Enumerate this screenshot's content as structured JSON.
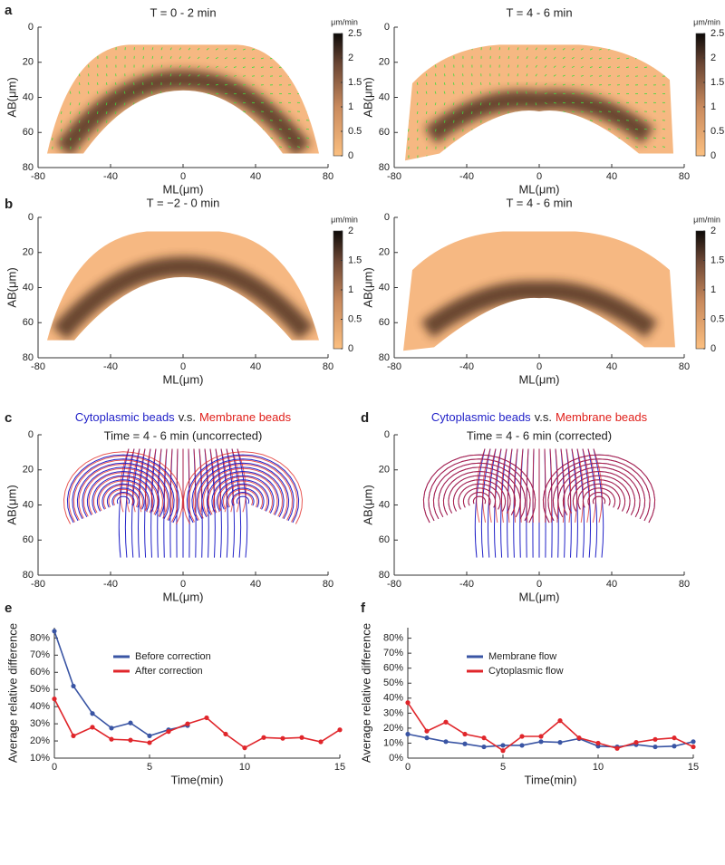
{
  "chart_data": [
    {
      "type": "heatmap",
      "panel": "a",
      "title": "T = 0 - 2 min",
      "xlabel": "ML(μm)",
      "ylabel": "AB(μm)",
      "xlim": [
        -80,
        80
      ],
      "xticks": [
        -80,
        -40,
        0,
        40,
        80
      ],
      "ylim": [
        0,
        80
      ],
      "yticks": [
        0,
        20,
        40,
        60,
        80
      ],
      "y_inverted": true,
      "colorbar_label": "μm/min",
      "clim": [
        0,
        2.5
      ],
      "cticks": [
        0,
        0.5,
        1,
        1.5,
        2,
        2.5
      ],
      "arrows": true
    },
    {
      "type": "heatmap",
      "title": "T = 4 - 6 min",
      "xlabel": "ML(μm)",
      "ylabel": "AB(μm)",
      "xlim": [
        -80,
        80
      ],
      "xticks": [
        -80,
        -40,
        0,
        40,
        80
      ],
      "ylim": [
        0,
        80
      ],
      "yticks": [
        0,
        20,
        40,
        60,
        80
      ],
      "y_inverted": true,
      "colorbar_label": "μm/min",
      "clim": [
        0,
        2.5
      ],
      "cticks": [
        0,
        0.5,
        1,
        1.5,
        2,
        2.5
      ],
      "arrows": true
    },
    {
      "type": "heatmap",
      "panel": "b",
      "title": "T = −2 - 0 min",
      "xlabel": "ML(μm)",
      "ylabel": "AB(μm)",
      "xlim": [
        -80,
        80
      ],
      "xticks": [
        -80,
        -40,
        0,
        40,
        80
      ],
      "ylim": [
        0,
        80
      ],
      "yticks": [
        0,
        20,
        40,
        60,
        80
      ],
      "y_inverted": true,
      "colorbar_label": "μm/min",
      "clim": [
        0,
        2
      ],
      "cticks": [
        0,
        0.5,
        1,
        1.5,
        2
      ],
      "arrows": false
    },
    {
      "type": "heatmap",
      "title": "T = 4 - 6 min",
      "xlabel": "ML(μm)",
      "ylabel": "AB(μm)",
      "xlim": [
        -80,
        80
      ],
      "xticks": [
        -80,
        -40,
        0,
        40,
        80
      ],
      "ylim": [
        0,
        80
      ],
      "yticks": [
        0,
        20,
        40,
        60,
        80
      ],
      "y_inverted": true,
      "colorbar_label": "μm/min",
      "clim": [
        0,
        2
      ],
      "cticks": [
        0,
        0.5,
        1,
        1.5,
        2
      ],
      "arrows": false
    },
    {
      "type": "streamline",
      "panel": "c",
      "connector": "v.s.",
      "subtitle": "Time = 4 - 6 min (uncorrected)",
      "xlabel": "ML(μm)",
      "ylabel": "AB(μm)",
      "xlim": [
        -80,
        80
      ],
      "xticks": [
        -80,
        -40,
        0,
        40,
        80
      ],
      "ylim": [
        0,
        80
      ],
      "yticks": [
        0,
        20,
        40,
        60,
        80
      ],
      "y_inverted": true,
      "series": [
        {
          "name": "Cytoplasmic beads",
          "color": "#2222c8"
        },
        {
          "name": "Membrane beads",
          "color": "#e0201b"
        }
      ]
    },
    {
      "type": "streamline",
      "panel": "d",
      "connector": "v.s.",
      "subtitle": "Time = 4 - 6 min (corrected)",
      "xlabel": "ML(μm)",
      "ylabel": "AB(μm)",
      "xlim": [
        -80,
        80
      ],
      "xticks": [
        -80,
        -40,
        0,
        40,
        80
      ],
      "ylim": [
        0,
        80
      ],
      "yticks": [
        0,
        20,
        40,
        60,
        80
      ],
      "y_inverted": true,
      "series": [
        {
          "name": "Cytoplasmic beads",
          "color": "#2222c8"
        },
        {
          "name": "Membrane beads",
          "color": "#e0201b"
        }
      ]
    },
    {
      "type": "line",
      "panel": "e",
      "xlabel": "Time(min)",
      "ylabel": "Average relative difference",
      "x": [
        0,
        1,
        2,
        3,
        4,
        5,
        6,
        7,
        8,
        9,
        10,
        11,
        12,
        13,
        14,
        15
      ],
      "xlim": [
        0,
        15
      ],
      "xticks": [
        0,
        5,
        10,
        15
      ],
      "ylim": [
        10,
        86
      ],
      "yticks": [
        {
          "value": 10,
          "label": "10%"
        },
        {
          "value": 20,
          "label": "20%"
        },
        {
          "value": 30,
          "label": "30%"
        },
        {
          "value": 40,
          "label": "40%"
        },
        {
          "value": 50,
          "label": "50%"
        },
        {
          "value": 60,
          "label": "60%"
        },
        {
          "value": 70,
          "label": "70%"
        },
        {
          "value": 80,
          "label": "80%"
        }
      ],
      "series": [
        {
          "name": "Before correction",
          "color": "#3a55a4",
          "values": [
            84,
            52,
            36,
            27.5,
            30.5,
            23,
            26.5,
            29,
            null,
            null,
            null,
            null,
            null,
            null,
            null,
            null
          ]
        },
        {
          "name": "After correction",
          "color": "#e0262b",
          "values": [
            44.5,
            23,
            28,
            21,
            20.5,
            19,
            25.5,
            30,
            33.5,
            24,
            16,
            22,
            21.5,
            22,
            19.5,
            26.5
          ]
        }
      ]
    },
    {
      "type": "line",
      "panel": "f",
      "xlabel": "Time(min)",
      "ylabel": "Average relative difference",
      "x": [
        0,
        1,
        2,
        3,
        4,
        5,
        6,
        7,
        8,
        9,
        10,
        11,
        12,
        13,
        14,
        15
      ],
      "xlim": [
        0,
        15
      ],
      "xticks": [
        0,
        5,
        10,
        15
      ],
      "ylim": [
        0,
        87
      ],
      "yticks": [
        {
          "value": 0,
          "label": "0%"
        },
        {
          "value": 10,
          "label": "10%"
        },
        {
          "value": 20,
          "label": "20%"
        },
        {
          "value": 30,
          "label": "30%"
        },
        {
          "value": 40,
          "label": "40%"
        },
        {
          "value": 50,
          "label": "50%"
        },
        {
          "value": 60,
          "label": "60%"
        },
        {
          "value": 70,
          "label": "70%"
        },
        {
          "value": 80,
          "label": "80%"
        }
      ],
      "series": [
        {
          "name": "Membrane flow",
          "color": "#3a55a4",
          "values": [
            16,
            13.5,
            11,
            9.5,
            7.5,
            8.5,
            8.5,
            11,
            10.5,
            13,
            8,
            7.5,
            9,
            7.5,
            8,
            11
          ]
        },
        {
          "name": "Cytoplasmic flow",
          "color": "#e0262b",
          "values": [
            37,
            18,
            24,
            16,
            13.5,
            5,
            14.5,
            14.5,
            25,
            13.5,
            10,
            6.5,
            10.5,
            12.5,
            13.5,
            7.5
          ]
        }
      ]
    }
  ]
}
